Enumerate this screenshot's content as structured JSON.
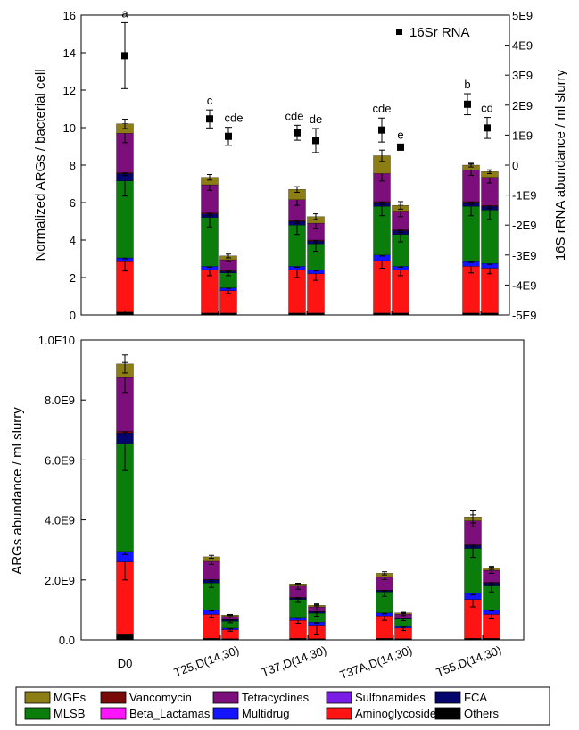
{
  "chart_data": [
    {
      "type": "bar",
      "stacked": true,
      "ylabel": "Normalized ARGs / bacterial cell",
      "ylim": [
        0,
        16
      ],
      "yticks": [
        "0",
        "2",
        "4",
        "6",
        "8",
        "10",
        "12",
        "14",
        "16"
      ],
      "y2label": "16S rRNA abundance / ml slurry",
      "y2lim": [
        -5000000000,
        5000000000
      ],
      "y2ticks": [
        "-5E9",
        "-4E9",
        "-3E9",
        "-2E9",
        "-1E9",
        "0",
        "1E9",
        "2E9",
        "3E9",
        "4E9",
        "5E9"
      ],
      "bars": [
        {
          "x": 140,
          "values": [
            0.15,
            2.7,
            0.2,
            0.0,
            4.1,
            0.4,
            0.0,
            0.05,
            2.1,
            0.5
          ],
          "err": [
            0.02,
            0.5,
            0.05,
            0,
            0.8,
            0.1,
            0,
            0.02,
            0.5,
            0.25
          ]
        },
        {
          "x": 235,
          "values": [
            0.1,
            2.3,
            0.2,
            0.0,
            2.6,
            0.2,
            0.0,
            0.05,
            1.5,
            0.4
          ],
          "err": [
            0.02,
            0.3,
            0.05,
            0,
            0.5,
            0.1,
            0,
            0.02,
            0.3,
            0.15
          ]
        },
        {
          "x": 256,
          "values": [
            0.1,
            1.2,
            0.15,
            0.0,
            0.8,
            0.1,
            0.0,
            0.05,
            0.55,
            0.2
          ],
          "err": [
            0.02,
            0.15,
            0.03,
            0,
            0.15,
            0.05,
            0,
            0.02,
            0.1,
            0.1
          ]
        },
        {
          "x": 333,
          "values": [
            0.1,
            2.3,
            0.2,
            0.0,
            2.2,
            0.2,
            0.0,
            0.05,
            1.1,
            0.55
          ],
          "err": [
            0.02,
            0.4,
            0.05,
            0,
            0.5,
            0.1,
            0,
            0.02,
            0.3,
            0.15
          ]
        },
        {
          "x": 354,
          "values": [
            0.1,
            2.1,
            0.2,
            0.0,
            1.4,
            0.15,
            0.0,
            0.05,
            0.9,
            0.35
          ],
          "err": [
            0.02,
            0.35,
            0.05,
            0,
            0.4,
            0.1,
            0,
            0.02,
            0.3,
            0.15
          ]
        },
        {
          "x": 428,
          "values": [
            0.1,
            2.8,
            0.3,
            0.0,
            2.6,
            0.2,
            0.0,
            0.05,
            1.5,
            0.95
          ],
          "err": [
            0.02,
            0.4,
            0.05,
            0,
            0.5,
            0.1,
            0,
            0.02,
            0.4,
            0.3
          ]
        },
        {
          "x": 449,
          "values": [
            0.1,
            2.3,
            0.2,
            0.0,
            1.7,
            0.2,
            0.0,
            0.05,
            1.0,
            0.3
          ],
          "err": [
            0.02,
            0.3,
            0.05,
            0,
            0.4,
            0.1,
            0,
            0.02,
            0.3,
            0.2
          ]
        },
        {
          "x": 528,
          "values": [
            0.1,
            2.5,
            0.25,
            0.0,
            2.95,
            0.2,
            0.0,
            0.05,
            1.7,
            0.25
          ],
          "err": [
            0.02,
            0.35,
            0.05,
            0,
            0.5,
            0.1,
            0,
            0.02,
            0.3,
            0.1
          ]
        },
        {
          "x": 549,
          "values": [
            0.1,
            2.4,
            0.25,
            0.0,
            2.85,
            0.2,
            0.0,
            0.05,
            1.5,
            0.3
          ],
          "err": [
            0.02,
            0.3,
            0.05,
            0,
            0.5,
            0.1,
            0,
            0.02,
            0.3,
            0.1
          ]
        }
      ],
      "series_16s": {
        "name": "16Sr RNA",
        "values": [
          3650000000,
          1540000000,
          960000000,
          1080000000,
          820000000,
          1170000000,
          600000000,
          2030000000,
          1240000000
        ],
        "err": [
          1100000000,
          300000000,
          300000000,
          250000000,
          400000000,
          400000000,
          100000000,
          350000000,
          350000000
        ]
      },
      "significance": [
        "a",
        "c",
        "cde",
        "cde",
        "de",
        "cde",
        "e",
        "b",
        "cd"
      ]
    },
    {
      "type": "bar",
      "stacked": true,
      "ylabel": "ARGs abundance / ml slurry",
      "ylim": [
        0,
        10000000000
      ],
      "yticks": [
        "0.0",
        "2.0E9",
        "4.0E9",
        "6.0E9",
        "8.0E9",
        "1.0E10"
      ],
      "categories": [
        "D0",
        "T25,D(14,30)",
        "T37,D(14,30)",
        "T37A,D(14,30)",
        "T55,D(14,30)"
      ],
      "bars": [
        {
          "x": 140,
          "values": [
            0.2,
            2.4,
            0.35,
            0.0,
            3.6,
            0.35,
            0.0,
            0.05,
            1.8,
            0.45
          ],
          "err": [
            0.03,
            0.6,
            0.1,
            0,
            0.9,
            0.1,
            0,
            0.02,
            0.5,
            0.3
          ]
        },
        {
          "x": 237,
          "values": [
            0.05,
            0.8,
            0.15,
            0.0,
            0.9,
            0.1,
            0.0,
            0.02,
            0.6,
            0.15
          ],
          "err": [
            0.01,
            0.1,
            0.03,
            0,
            0.15,
            0.05,
            0,
            0.01,
            0.1,
            0.05
          ]
        },
        {
          "x": 258,
          "values": [
            0.04,
            0.3,
            0.05,
            0.0,
            0.23,
            0.05,
            0.0,
            0.01,
            0.1,
            0.05
          ],
          "err": [
            0.01,
            0.05,
            0.02,
            0,
            0.05,
            0.02,
            0,
            0.01,
            0.05,
            0.02
          ]
        },
        {
          "x": 334,
          "values": [
            0.05,
            0.6,
            0.1,
            0.0,
            0.6,
            0.05,
            0.0,
            0.02,
            0.37,
            0.08
          ],
          "err": [
            0.01,
            0.1,
            0.03,
            0,
            0.1,
            0.02,
            0,
            0.01,
            0.1,
            0.02
          ]
        },
        {
          "x": 355,
          "values": [
            0.04,
            0.45,
            0.1,
            0.0,
            0.3,
            0.05,
            0.0,
            0.01,
            0.15,
            0.05
          ],
          "err": [
            0.01,
            0.3,
            0.03,
            0,
            0.1,
            0.02,
            0,
            0.01,
            0.1,
            0.02
          ]
        },
        {
          "x": 431,
          "values": [
            0.05,
            0.75,
            0.1,
            0.0,
            0.7,
            0.05,
            0.0,
            0.01,
            0.45,
            0.11
          ],
          "err": [
            0.01,
            0.15,
            0.03,
            0,
            0.15,
            0.02,
            0,
            0.01,
            0.1,
            0.05
          ]
        },
        {
          "x": 452,
          "values": [
            0.04,
            0.35,
            0.05,
            0.0,
            0.25,
            0.04,
            0.0,
            0.01,
            0.12,
            0.04
          ],
          "err": [
            0.01,
            0.08,
            0.02,
            0,
            0.05,
            0.02,
            0,
            0.01,
            0.05,
            0.02
          ]
        },
        {
          "x": 530,
          "values": [
            0.05,
            1.3,
            0.2,
            0.0,
            1.5,
            0.1,
            0.0,
            0.02,
            0.8,
            0.13
          ],
          "err": [
            0.01,
            0.25,
            0.05,
            0,
            0.3,
            0.05,
            0,
            0.01,
            0.2,
            0.2
          ]
        },
        {
          "x": 551,
          "values": [
            0.05,
            0.8,
            0.15,
            0.0,
            0.8,
            0.1,
            0.0,
            0.02,
            0.4,
            0.08
          ],
          "err": [
            0.01,
            0.15,
            0.03,
            0,
            0.2,
            0.05,
            0,
            0.01,
            0.1,
            0.05
          ]
        }
      ]
    }
  ],
  "stack_order": [
    "Others",
    "Aminoglycosides",
    "Multidrug",
    "Beta_Lactamas",
    "MLSB",
    "FCA",
    "Sulfonamides",
    "Vancomycin",
    "Tetracyclines",
    "MGEs"
  ],
  "legend": [
    {
      "name": "MGEs",
      "color": "#8c7d14"
    },
    {
      "name": "Vancomycin",
      "color": "#7a0a0a"
    },
    {
      "name": "Tetracyclines",
      "color": "#7d0f7d"
    },
    {
      "name": "Sulfonamides",
      "color": "#7a1ee6"
    },
    {
      "name": "FCA",
      "color": "#05056e"
    },
    {
      "name": "MLSB",
      "color": "#0a7d0a"
    },
    {
      "name": "Beta_Lactamas",
      "color": "#ff14ff"
    },
    {
      "name": "Multidrug",
      "color": "#1414ff"
    },
    {
      "name": "Aminoglycosides",
      "color": "#ff1414"
    },
    {
      "name": "Others",
      "color": "#000000"
    }
  ],
  "colors": {
    "Others": "#000000",
    "Aminoglycosides": "#ff1414",
    "Multidrug": "#1414ff",
    "Beta_Lactamas": "#ff14ff",
    "MLSB": "#0a7d0a",
    "FCA": "#05056e",
    "Sulfonamides": "#7a1ee6",
    "Vancomycin": "#7a0a0a",
    "Tetracyclines": "#7d0f7d",
    "MGEs": "#8c7d14"
  }
}
